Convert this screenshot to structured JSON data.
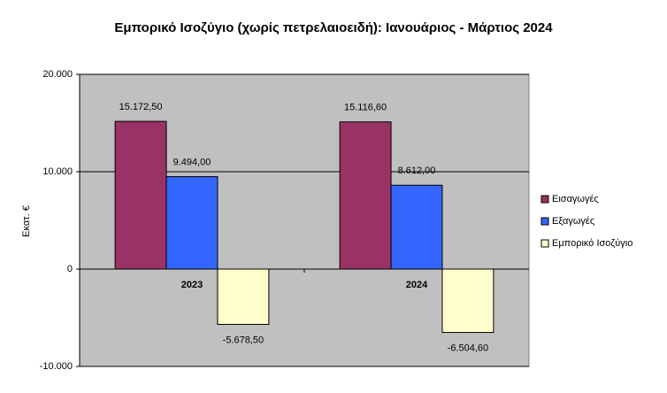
{
  "chart_data": {
    "type": "bar",
    "title": "Εμπορικό Ισοζύγιο (χωρίς πετρελαιοειδή): Ιανουάριος - Μάρτιος 2024",
    "y_label": "Εκατ. €",
    "categories": [
      "2023",
      "2024"
    ],
    "series": [
      {
        "name": "Εισαγωγές",
        "color": "#993366",
        "values": [
          15172.5,
          15116.6
        ],
        "value_labels": [
          "15.172,50",
          "15.116,60"
        ]
      },
      {
        "name": "Εξαγωγές",
        "color": "#3366ff",
        "values": [
          9494,
          8612
        ],
        "value_labels": [
          "9.494,00",
          "8.612,00"
        ]
      },
      {
        "name": "Εμπορικό Ισοζύγιο",
        "color": "#ffffcc",
        "values": [
          -5678.5,
          -6504.6
        ],
        "value_labels": [
          "-5.678,50",
          "-6.504,60"
        ]
      }
    ],
    "ylim": [
      -10000,
      20000
    ],
    "yticks": [
      {
        "value": -10000,
        "label": "-10.000"
      },
      0,
      {
        "value": 10000,
        "label": "10.000"
      },
      {
        "value": 20000,
        "label": "20.000"
      }
    ],
    "grid": true,
    "legend": "right",
    "plot_background": "#c0c0c0"
  }
}
